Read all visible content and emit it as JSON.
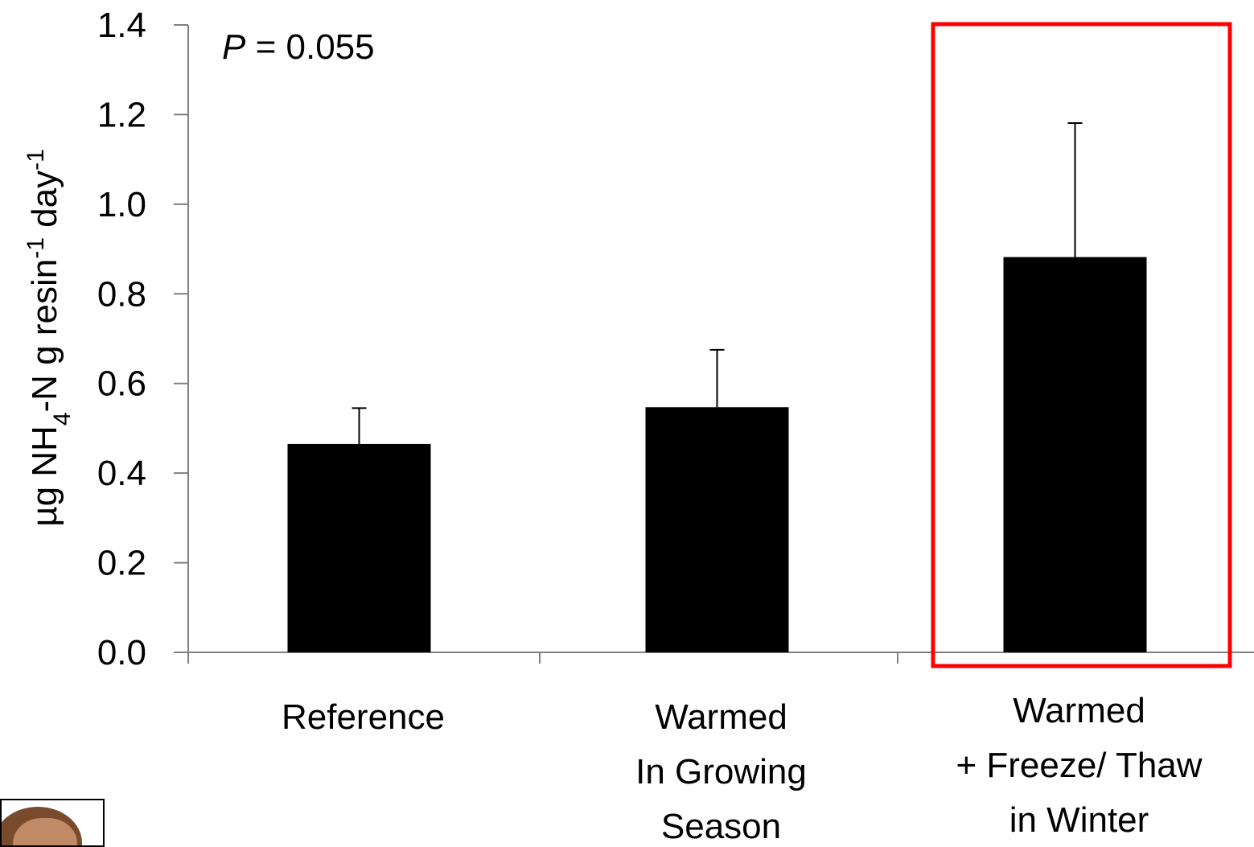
{
  "chart_data": {
    "type": "bar",
    "categories": [
      [
        "Reference"
      ],
      [
        "Warmed",
        "In Growing",
        "Season"
      ],
      [
        "Warmed",
        "+ Freeze/ Thaw",
        "in Winter"
      ]
    ],
    "values": [
      0.465,
      0.547,
      0.882
    ],
    "error_upper": [
      0.545,
      0.675,
      1.181
    ],
    "ylabel_parts": {
      "pre": "µg NH",
      "sub": "4",
      "mid": "-N g resin",
      "sup1": "-1",
      "mid2": " day",
      "sup2": "-1"
    },
    "ylim": [
      0,
      1.4
    ],
    "yticks": [
      "0.0",
      "0.2",
      "0.4",
      "0.6",
      "0.8",
      "1.0",
      "1.2",
      "1.4"
    ],
    "annotation": {
      "italic": "P",
      "rest": " = 0.055"
    },
    "highlight_category_index": 2,
    "colors": {
      "bar": "#000000",
      "highlight_box": "#ff0000",
      "axis": "#808080"
    }
  }
}
